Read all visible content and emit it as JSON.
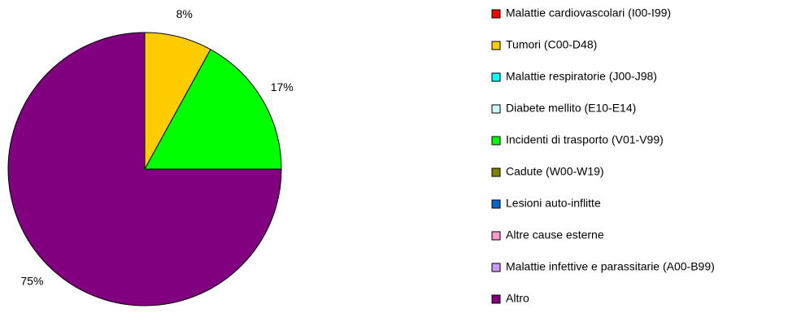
{
  "chart_data": {
    "type": "pie",
    "categories": [
      "Malattie cardiovascolari (I00-I99)",
      "Tumori (C00-D48)",
      "Malattie respiratorie (J00-J98)",
      "Diabete mellito (E10-E14)",
      "Incidenti di trasporto (V01-V99)",
      "Cadute (W00-W19)",
      "Lesioni auto-inflitte",
      "Altre cause esterne",
      "Malattie infettive e parassitarie (A00-B99)",
      "Altro"
    ],
    "values": [
      0,
      8,
      0,
      0,
      17,
      0,
      0,
      0,
      0,
      75
    ],
    "value_labels": [
      null,
      "8%",
      null,
      null,
      "17%",
      null,
      null,
      null,
      null,
      "75%"
    ],
    "colors": [
      "#ff0000",
      "#ffcc00",
      "#00ffff",
      "#ccffff",
      "#00ff00",
      "#808000",
      "#0066cc",
      "#ff99cc",
      "#cc99ff",
      "#800080"
    ],
    "legend": "right"
  }
}
